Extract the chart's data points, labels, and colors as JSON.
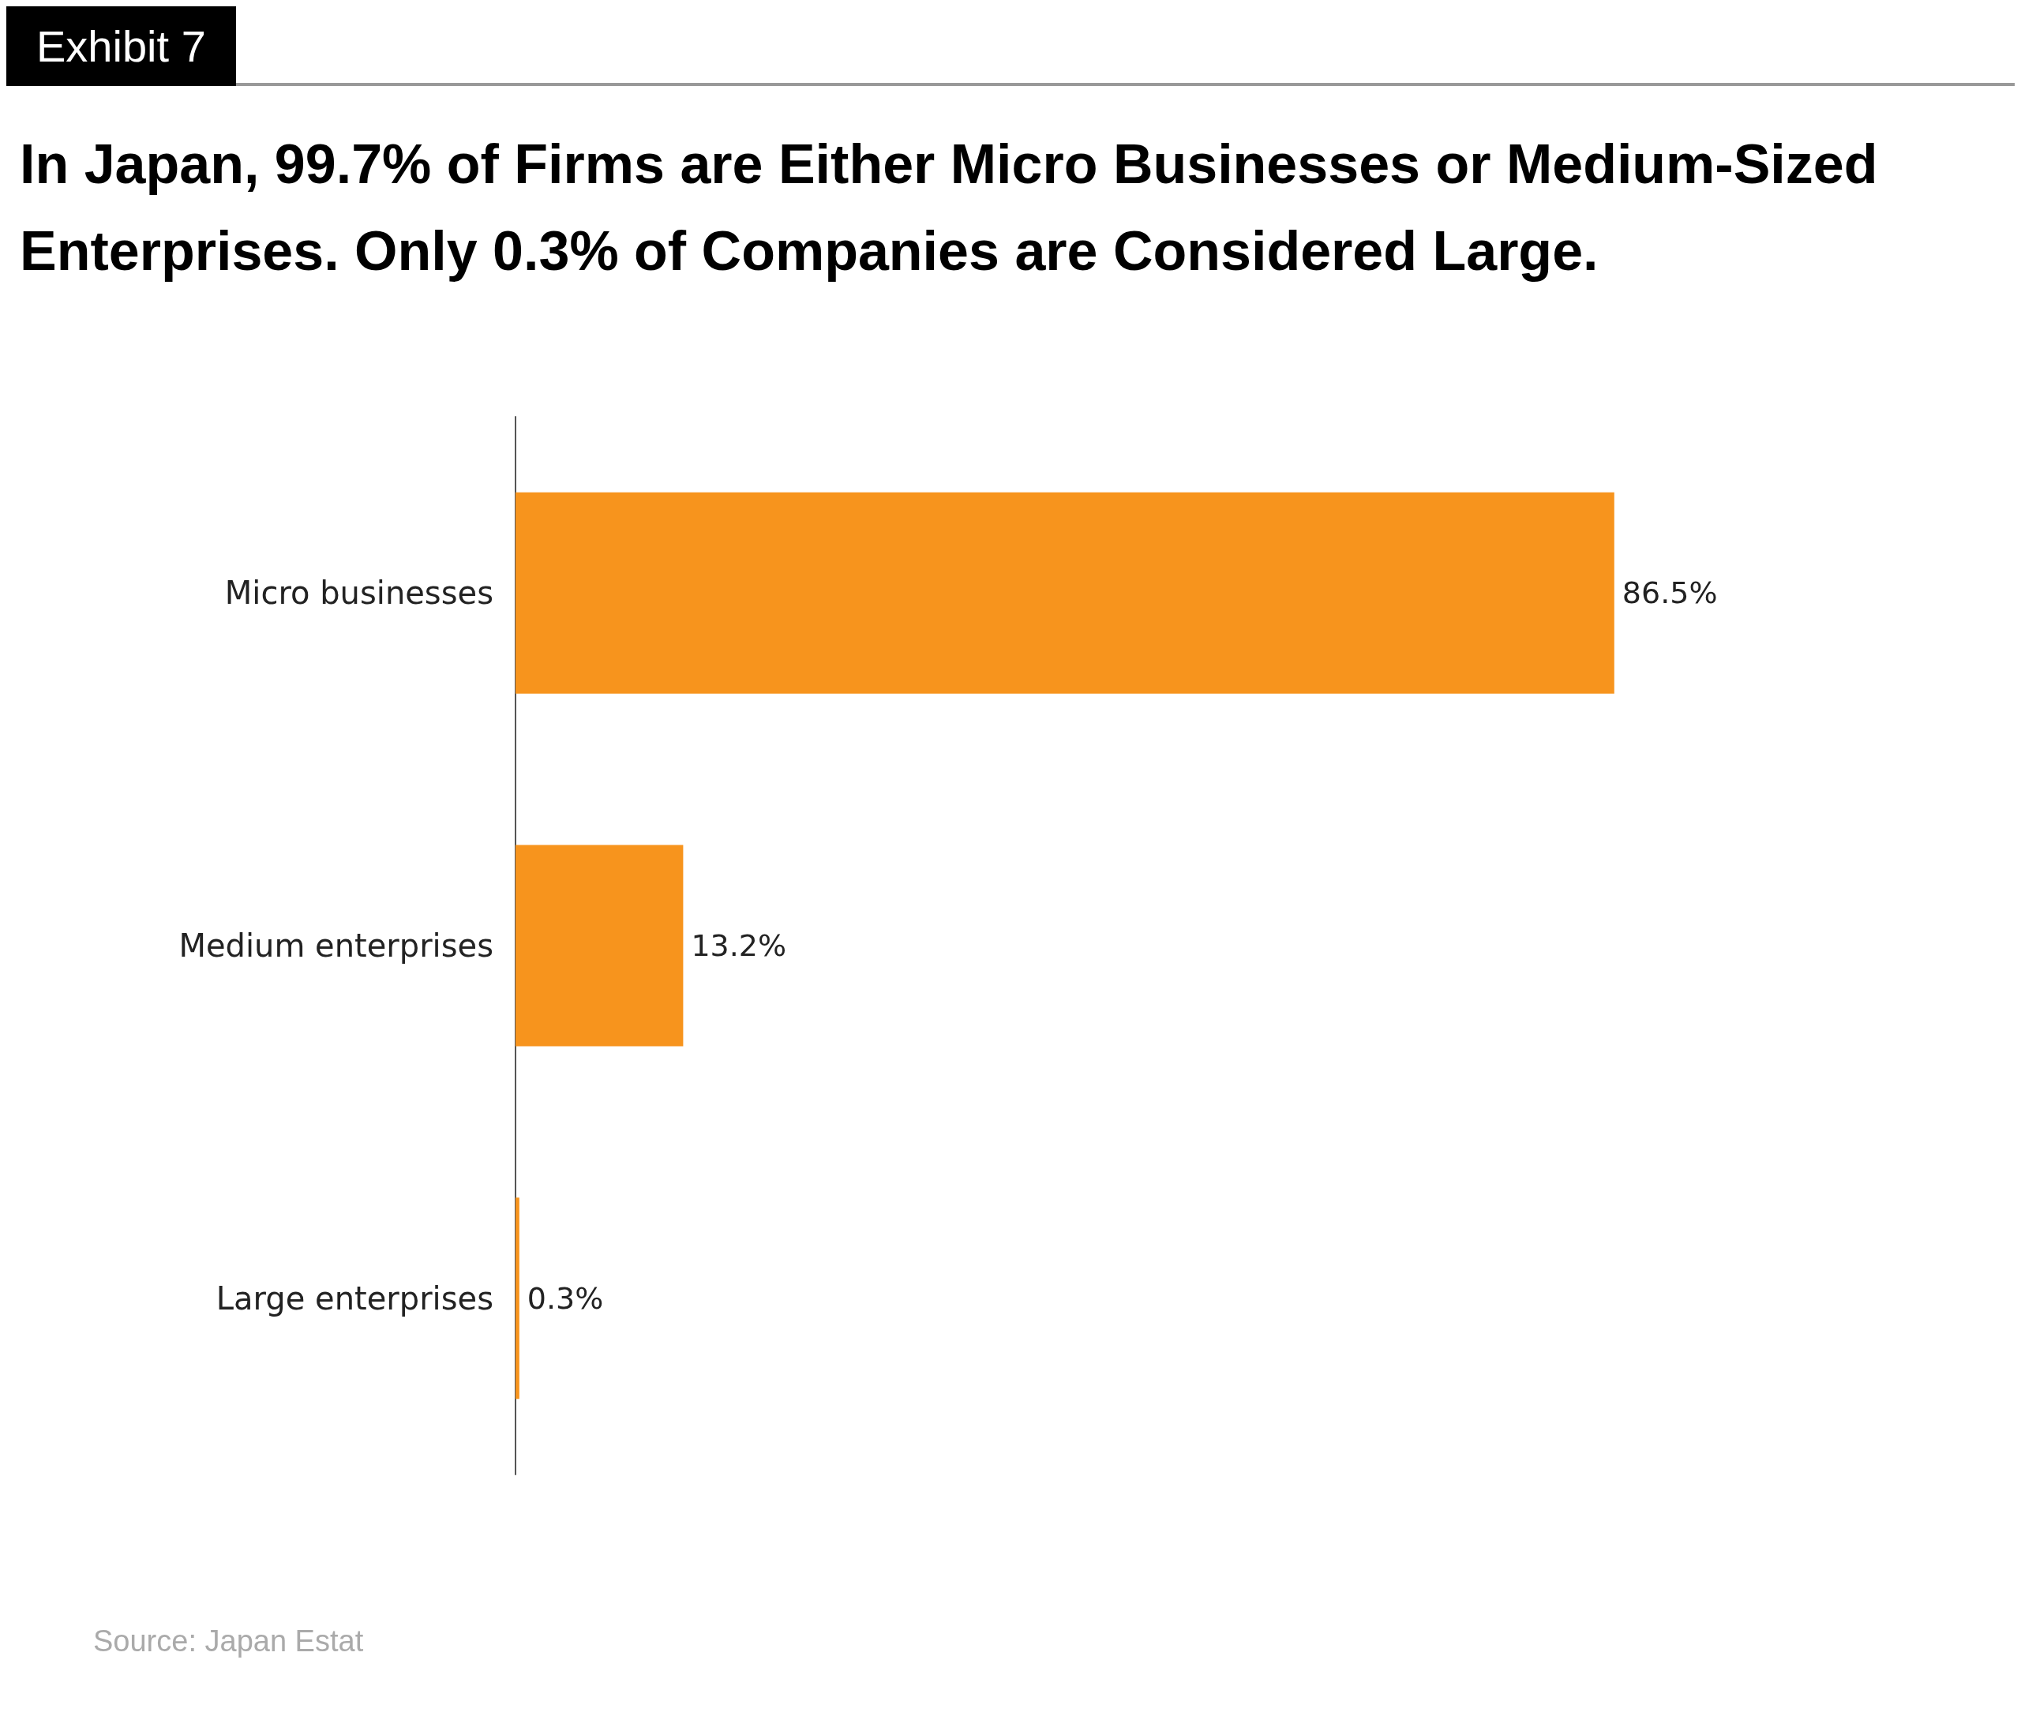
{
  "chart_data": {
    "type": "bar",
    "orientation": "horizontal",
    "title": "In Japan, 99.7% of Firms are Either Micro Businesses or Medium-Sized Enterprises. Only 0.3% of Companies are Considered Large.",
    "categories": [
      "Micro businesses",
      "Medium enterprises",
      "Large enterprises"
    ],
    "values": [
      86.5,
      13.2,
      0.3
    ],
    "value_labels": [
      "86.5%",
      "13.2%",
      "0.3%"
    ],
    "color": "#f7941d",
    "annotations": [
      "Exhibit 7",
      "Source: Japan Estat"
    ]
  }
}
